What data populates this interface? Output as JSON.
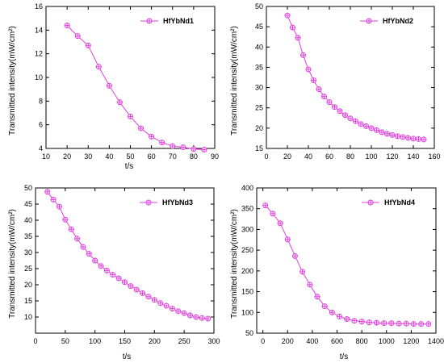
{
  "colors": {
    "series": "#e23fe0",
    "axis": "#000000",
    "background": "#ffffff"
  },
  "chart_data": [
    {
      "type": "line",
      "legend": [
        "HfYbNd1"
      ],
      "legend_position": "top-right",
      "xlabel": "t/s",
      "ylabel": "Transmitted intensity(mW/cm²)",
      "xlim": [
        10,
        90
      ],
      "ylim": [
        4,
        16
      ],
      "xticks": [
        "10",
        "20",
        "30",
        "40",
        "50",
        "60",
        "70",
        "80",
        "90"
      ],
      "yticks": [
        "4",
        "6",
        "8",
        "10",
        "12",
        "14",
        "16"
      ],
      "grid": false,
      "series": [
        {
          "x": [
            20,
            25,
            30,
            35,
            40,
            45,
            50,
            55,
            60,
            65,
            70,
            75,
            80,
            85
          ],
          "y": [
            14.4,
            13.5,
            12.7,
            10.9,
            9.3,
            7.9,
            6.7,
            5.7,
            5.0,
            4.5,
            4.2,
            4.1,
            3.95,
            3.9
          ]
        }
      ]
    },
    {
      "type": "line",
      "legend": [
        "HfYbNd2"
      ],
      "legend_position": "top-right",
      "xlabel": "",
      "ylabel": "Transmitted intensity(mW/cm²)",
      "xlim": [
        0,
        160
      ],
      "ylim": [
        15,
        50
      ],
      "xticks": [
        "0",
        "20",
        "40",
        "60",
        "80",
        "100",
        "120",
        "140",
        "160"
      ],
      "yticks": [
        "15",
        "20",
        "25",
        "30",
        "35",
        "40",
        "45",
        "50"
      ],
      "grid": false,
      "series": [
        {
          "x": [
            20,
            25,
            30,
            35,
            40,
            45,
            50,
            55,
            60,
            65,
            70,
            75,
            80,
            85,
            90,
            95,
            100,
            105,
            110,
            115,
            120,
            125,
            130,
            135,
            140,
            145,
            150
          ],
          "y": [
            47.8,
            44.8,
            42.3,
            38.0,
            34.5,
            31.8,
            29.6,
            27.8,
            26.4,
            25.2,
            24.2,
            23.2,
            22.4,
            21.7,
            21.0,
            20.5,
            20.0,
            19.5,
            19.0,
            18.6,
            18.3,
            18.0,
            17.8,
            17.6,
            17.4,
            17.3,
            17.2
          ]
        }
      ]
    },
    {
      "type": "line",
      "legend": [
        "HfYbNd3"
      ],
      "legend_position": "top-right",
      "xlabel": "t/s",
      "ylabel": "Transmitted intensity(mW/cm²)",
      "xlim": [
        0,
        300
      ],
      "ylim": [
        5,
        50
      ],
      "xticks": [
        "0",
        "50",
        "100",
        "150",
        "200",
        "250",
        "300"
      ],
      "yticks": [
        "10",
        "15",
        "20",
        "25",
        "30",
        "35",
        "40",
        "45",
        "50"
      ],
      "grid": false,
      "series": [
        {
          "x": [
            20,
            30,
            40,
            50,
            60,
            70,
            80,
            90,
            100,
            110,
            120,
            130,
            140,
            150,
            160,
            170,
            180,
            190,
            200,
            210,
            220,
            230,
            240,
            250,
            260,
            270,
            280,
            290
          ],
          "y": [
            48.8,
            46.4,
            44.2,
            40.2,
            37.2,
            34.3,
            31.7,
            29.6,
            27.5,
            25.8,
            24.4,
            23.1,
            22.0,
            20.8,
            19.6,
            18.5,
            17.4,
            16.3,
            15.3,
            14.3,
            13.5,
            12.6,
            11.8,
            11.2,
            10.5,
            10.0,
            9.7,
            9.5
          ]
        }
      ]
    },
    {
      "type": "line",
      "legend": [
        "HfYbNd4"
      ],
      "legend_position": "top-right",
      "xlabel": "t/s",
      "ylabel": "Transmitted intensity(mW/cm²)",
      "xlim": [
        -50,
        1400
      ],
      "ylim": [
        50,
        400
      ],
      "xticks": [
        "0",
        "200",
        "400",
        "600",
        "800",
        "1000",
        "1200",
        "1400"
      ],
      "yticks": [
        "50",
        "100",
        "150",
        "200",
        "250",
        "300",
        "350",
        "400"
      ],
      "grid": false,
      "series": [
        {
          "x": [
            20,
            80,
            140,
            200,
            260,
            320,
            380,
            440,
            500,
            560,
            620,
            680,
            740,
            800,
            860,
            920,
            980,
            1040,
            1100,
            1160,
            1220,
            1280,
            1340
          ],
          "y": [
            358,
            338,
            315,
            276,
            236,
            198,
            167,
            138,
            115,
            100,
            90,
            84,
            80,
            78,
            76,
            75,
            74,
            74,
            73,
            73,
            72,
            72,
            72
          ]
        }
      ]
    }
  ]
}
